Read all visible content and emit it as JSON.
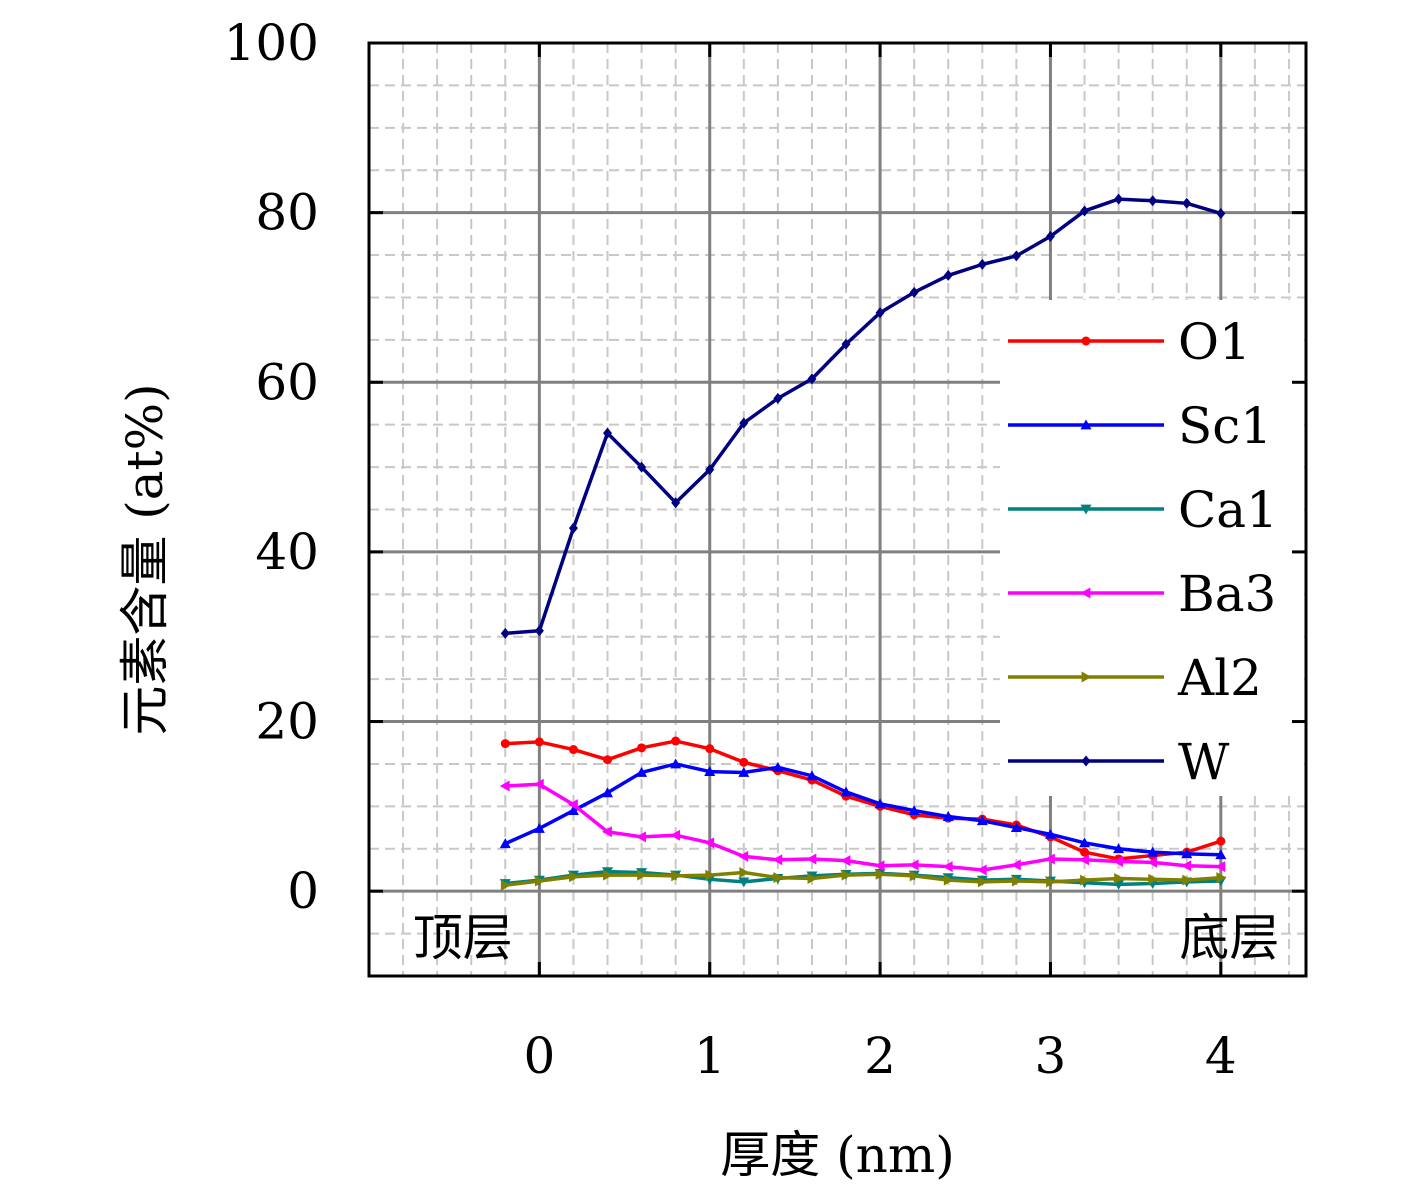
{
  "chart_data": {
    "type": "line",
    "title": "",
    "xlabel": "厚度 (nm)",
    "ylabel": "元素含量 (at%)",
    "xlim": [
      -1,
      4.5
    ],
    "ylim": [
      -10,
      100
    ],
    "xticks": [
      0,
      1,
      2,
      3,
      4
    ],
    "yticks": [
      0,
      20,
      40,
      60,
      80,
      100
    ],
    "xtick_labels": [
      "0",
      "1",
      "2",
      "3",
      "4"
    ],
    "ytick_labels": [
      "0",
      "20",
      "40",
      "60",
      "80",
      "100"
    ],
    "grid": true,
    "legend_position": "right",
    "annotations": [
      {
        "text": "顶层",
        "x": -0.45,
        "y": -5.5
      },
      {
        "text": "底层",
        "x": 4.05,
        "y": -5.5
      }
    ],
    "x": [
      -0.2,
      0,
      0.2,
      0.4,
      0.6,
      0.8,
      1.0,
      1.2,
      1.4,
      1.6,
      1.8,
      2.0,
      2.2,
      2.4,
      2.6,
      2.8,
      3.0,
      3.2,
      3.4,
      3.6,
      3.8,
      4.0
    ],
    "series": [
      {
        "name": "O1",
        "color": "#ff0000",
        "marker": "circle",
        "values": [
          17.4,
          17.6,
          16.7,
          15.5,
          16.9,
          17.7,
          16.8,
          15.2,
          14.2,
          13.1,
          11.2,
          10.0,
          9.0,
          8.6,
          8.5,
          7.8,
          6.4,
          4.6,
          3.8,
          4.2,
          4.6,
          5.9
        ]
      },
      {
        "name": "Sc1",
        "color": "#0000ff",
        "marker": "triangle-up",
        "values": [
          5.6,
          7.4,
          9.5,
          11.6,
          14.0,
          15.0,
          14.1,
          14.0,
          14.6,
          13.6,
          11.7,
          10.3,
          9.5,
          8.8,
          8.3,
          7.5,
          6.7,
          5.7,
          5.0,
          4.6,
          4.4,
          4.3
        ]
      },
      {
        "name": "Ca1",
        "color": "#008080",
        "marker": "triangle-down",
        "values": [
          0.9,
          1.3,
          1.9,
          2.3,
          2.2,
          1.9,
          1.4,
          1.1,
          1.5,
          1.8,
          2.0,
          2.1,
          1.9,
          1.6,
          1.3,
          1.4,
          1.2,
          1.0,
          0.8,
          0.9,
          1.1,
          1.2
        ]
      },
      {
        "name": "Ba3",
        "color": "#ff00ff",
        "marker": "triangle-left",
        "values": [
          12.4,
          12.6,
          10.2,
          7.0,
          6.4,
          6.6,
          5.7,
          4.1,
          3.7,
          3.8,
          3.6,
          3.0,
          3.1,
          2.9,
          2.5,
          3.1,
          3.8,
          3.7,
          3.5,
          3.4,
          3.0,
          2.9
        ]
      },
      {
        "name": "Al2",
        "color": "#808000",
        "marker": "triangle-right",
        "values": [
          0.7,
          1.2,
          1.7,
          1.9,
          1.9,
          1.8,
          1.9,
          2.2,
          1.6,
          1.5,
          1.9,
          2.0,
          1.8,
          1.3,
          1.1,
          1.2,
          1.1,
          1.3,
          1.5,
          1.4,
          1.3,
          1.6
        ]
      },
      {
        "name": "W",
        "color": "#000080",
        "marker": "diamond",
        "values": [
          30.4,
          30.7,
          42.8,
          54.0,
          50.0,
          45.8,
          49.7,
          55.2,
          58.1,
          60.4,
          64.5,
          68.2,
          70.6,
          72.6,
          73.9,
          74.9,
          77.2,
          80.2,
          81.6,
          81.4,
          81.1,
          79.9
        ]
      }
    ]
  }
}
